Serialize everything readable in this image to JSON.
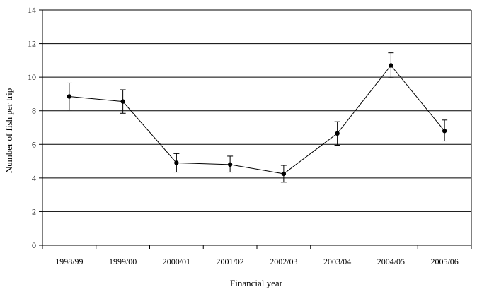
{
  "chart_data": {
    "type": "line",
    "title": "",
    "xlabel": "Financial year",
    "ylabel": "Number of fish per trip",
    "categories": [
      "1998/99",
      "1999/00",
      "2000/01",
      "2001/02",
      "2002/03",
      "2003/04",
      "2004/05",
      "2005/06"
    ],
    "series": [
      {
        "values": [
          8.85,
          8.55,
          4.9,
          4.8,
          4.25,
          6.65,
          10.7,
          6.8
        ],
        "error_low": [
          8.05,
          7.85,
          4.35,
          4.35,
          3.75,
          5.95,
          9.95,
          6.2
        ],
        "error_high": [
          9.65,
          9.25,
          5.45,
          5.3,
          4.75,
          7.35,
          11.45,
          7.45
        ],
        "color": "#000000"
      }
    ],
    "ylim": [
      0,
      14
    ],
    "yticks": [
      0,
      2,
      4,
      6,
      8,
      10,
      12,
      14
    ],
    "grid": true,
    "legend": "none"
  }
}
